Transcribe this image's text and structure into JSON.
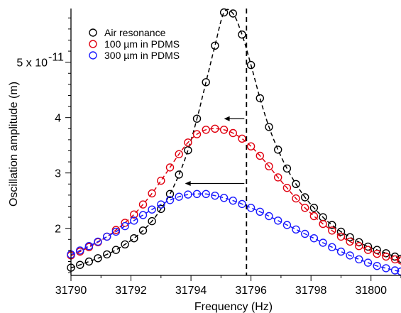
{
  "chart_data": {
    "type": "scatter",
    "title": "",
    "xlabel": "Frequency (Hz)",
    "ylabel": "Oscillation amplitude (m)",
    "xlim": [
      31790,
      31801
    ],
    "ylim": [
      1.15e-11,
      5.97e-11
    ],
    "xticks": [
      {
        "value": 31790,
        "label": "31790"
      },
      {
        "value": 31792,
        "label": "31792"
      },
      {
        "value": 31794,
        "label": "31794"
      },
      {
        "value": 31796,
        "label": "31796"
      },
      {
        "value": 31798,
        "label": "31798"
      },
      {
        "value": 31800,
        "label": "31800"
      }
    ],
    "yticks": [
      {
        "value": 2e-11,
        "label": "2"
      },
      {
        "value": 3e-11,
        "label": "3"
      },
      {
        "value": 4e-11,
        "label": "4"
      },
      {
        "value": 5e-11,
        "label": "5 x 10"
      }
    ],
    "y_exponent": "-11",
    "legend_position": "top-left",
    "resonance_line_x": 31795.85,
    "arrows": [
      {
        "from": [
          31795.85,
          3.98e-11
        ],
        "to": [
          31795.1,
          3.98e-11
        ]
      },
      {
        "from": [
          31795.85,
          2.81e-11
        ],
        "to": [
          31793.8,
          2.81e-11
        ]
      }
    ],
    "series": [
      {
        "name": "Air resonance",
        "color": "#000000",
        "x": [
          31790.0,
          31790.3,
          31790.6,
          31790.9,
          31791.2,
          31791.5,
          31791.8,
          31792.1,
          31792.4,
          31792.7,
          31793.0,
          31793.3,
          31793.6,
          31793.9,
          31794.2,
          31794.5,
          31794.8,
          31795.1,
          31795.4,
          31795.7,
          31796.0,
          31796.3,
          31796.6,
          31796.9,
          31797.2,
          31797.5,
          31797.8,
          31798.1,
          31798.4,
          31798.7,
          31799.0,
          31799.3,
          31799.6,
          31799.9,
          31800.2,
          31800.5,
          31800.8,
          31801.0
        ],
        "y": [
          1.29e-11,
          1.34e-11,
          1.4e-11,
          1.46e-11,
          1.53e-11,
          1.61e-11,
          1.71e-11,
          1.82e-11,
          1.96e-11,
          2.13e-11,
          2.35e-11,
          2.62e-11,
          2.97e-11,
          3.41e-11,
          3.98e-11,
          4.64e-11,
          5.3e-11,
          5.9e-11,
          5.88e-11,
          5.5e-11,
          4.95e-11,
          4.35e-11,
          3.83e-11,
          3.42e-11,
          3.08e-11,
          2.8e-11,
          2.56e-11,
          2.37e-11,
          2.2e-11,
          2.06e-11,
          1.94e-11,
          1.84e-11,
          1.75e-11,
          1.67e-11,
          1.61e-11,
          1.55e-11,
          1.49e-11,
          1.45e-11
        ],
        "fit_peak_x": 31795.6
      },
      {
        "name": "100 µm in PDMS",
        "color": "#e0000f",
        "x": [
          31790.0,
          31790.3,
          31790.6,
          31790.9,
          31791.2,
          31791.5,
          31791.8,
          31792.1,
          31792.4,
          31792.7,
          31793.0,
          31793.3,
          31793.6,
          31793.9,
          31794.2,
          31794.5,
          31794.8,
          31795.1,
          31795.4,
          31795.7,
          31796.0,
          31796.3,
          31796.6,
          31796.9,
          31797.2,
          31797.5,
          31797.8,
          31798.1,
          31798.4,
          31798.7,
          31799.0,
          31799.3,
          31799.6,
          31799.9,
          31800.2,
          31800.5,
          31800.8,
          31801.0
        ],
        "y": [
          1.51e-11,
          1.58e-11,
          1.66e-11,
          1.75e-11,
          1.85e-11,
          1.97e-11,
          2.1e-11,
          2.25e-11,
          2.43e-11,
          2.63e-11,
          2.86e-11,
          3.1e-11,
          3.34e-11,
          3.55e-11,
          3.7e-11,
          3.78e-11,
          3.8e-11,
          3.78e-11,
          3.72e-11,
          3.62e-11,
          3.48e-11,
          3.31e-11,
          3.12e-11,
          2.92e-11,
          2.73e-11,
          2.54e-11,
          2.37e-11,
          2.22e-11,
          2.08e-11,
          1.96e-11,
          1.85e-11,
          1.76e-11,
          1.68e-11,
          1.61e-11,
          1.54e-11,
          1.49e-11,
          1.44e-11,
          1.42e-11
        ],
        "fit_peak_x": 31795.0
      },
      {
        "name": "300 µm in PDMS",
        "color": "#1a1aff",
        "x": [
          31790.0,
          31790.3,
          31790.6,
          31790.9,
          31791.2,
          31791.5,
          31791.8,
          31792.1,
          31792.4,
          31792.7,
          31793.0,
          31793.3,
          31793.6,
          31793.9,
          31794.2,
          31794.5,
          31794.8,
          31795.1,
          31795.4,
          31795.7,
          31796.0,
          31796.3,
          31796.6,
          31796.9,
          31797.2,
          31797.5,
          31797.8,
          31798.1,
          31798.4,
          31798.7,
          31799.0,
          31799.3,
          31799.6,
          31799.9,
          31800.2,
          31800.5,
          31800.8,
          31801.0
        ],
        "y": [
          1.53e-11,
          1.6e-11,
          1.68e-11,
          1.76e-11,
          1.85e-11,
          1.94e-11,
          2.04e-11,
          2.14e-11,
          2.24e-11,
          2.34e-11,
          2.43e-11,
          2.51e-11,
          2.57e-11,
          2.61e-11,
          2.62e-11,
          2.62e-11,
          2.59e-11,
          2.55e-11,
          2.5e-11,
          2.44e-11,
          2.37e-11,
          2.3e-11,
          2.22e-11,
          2.14e-11,
          2.06e-11,
          1.98e-11,
          1.9e-11,
          1.82e-11,
          1.74e-11,
          1.66e-11,
          1.58e-11,
          1.51e-11,
          1.44e-11,
          1.38e-11,
          1.32e-11,
          1.28e-11,
          1.24e-11,
          1.22e-11
        ],
        "fit_peak_x": 31794.5
      }
    ]
  }
}
